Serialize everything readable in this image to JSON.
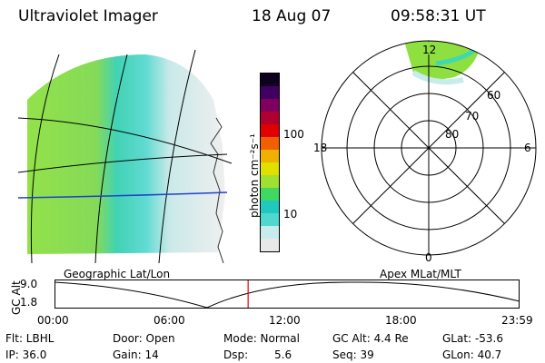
{
  "header": {
    "instrument": "Ultraviolet Imager",
    "date": "18 Aug 07",
    "time": "09:58:31 UT"
  },
  "colorbar": {
    "unit_label": "photon cm⁻²s⁻¹",
    "ticks": [
      "100",
      "10"
    ],
    "colors": [
      "#e8e8e8",
      "#c8ecec",
      "#50d8d0",
      "#20c8c0",
      "#40d860",
      "#a0e030",
      "#e0e000",
      "#f0b000",
      "#f06000",
      "#e00000",
      "#b00030",
      "#800060",
      "#400060",
      "#100020"
    ]
  },
  "polar_plot": {
    "mlt_labels": {
      "top": "12",
      "left": "18",
      "right": "6",
      "bottom": "0"
    },
    "lat_labels": [
      "60",
      "70",
      "80"
    ]
  },
  "geo_plot": {},
  "timeline": {
    "left_title": "Geographic Lat/Lon",
    "right_title": "Apex MLat/MLT",
    "y_axis_label": "GC Alt",
    "y_ticks": [
      "9.0",
      "1.8"
    ],
    "x_ticks": [
      "00:00",
      "06:00",
      "12:00",
      "18:00",
      "23:59"
    ],
    "current_time_fraction": 0.416
  },
  "info": {
    "flt": "Flt: LBHL",
    "ip": "IP: 36.0",
    "door": "Door: Open",
    "gain": "Gain: 14",
    "mode": "Mode: Normal",
    "dsp_label": "Dsp:",
    "dsp_value": "5.6",
    "gc_alt": "GC Alt: 4.4 Re",
    "seq": "Seq: 39",
    "glat": "GLat: -53.6",
    "glon": "GLon:  40.7"
  }
}
